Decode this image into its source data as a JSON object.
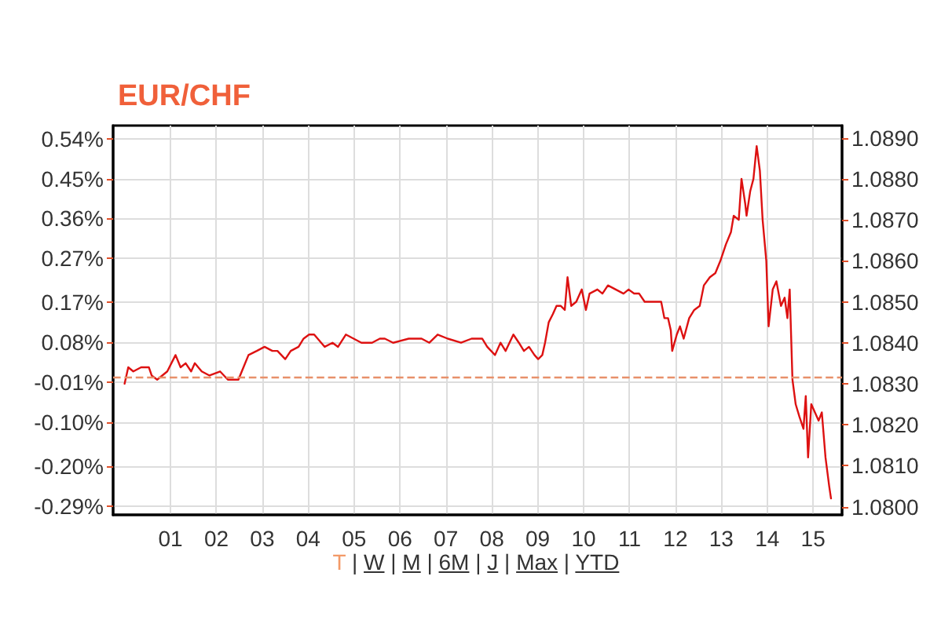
{
  "chart_data": {
    "type": "line",
    "title": "EUR/CHF",
    "x": [
      0,
      0.08,
      0.19,
      0.36,
      0.53,
      0.59,
      0.71,
      0.93,
      1.11,
      1.22,
      1.33,
      1.45,
      1.53,
      1.68,
      1.85,
      2.08,
      2.25,
      2.36,
      2.48,
      2.59,
      2.7,
      2.88,
      3.05,
      3.22,
      3.33,
      3.5,
      3.62,
      3.79,
      3.9,
      4.02,
      4.13,
      4.36,
      4.53,
      4.65,
      4.82,
      4.99,
      5.16,
      5.39,
      5.56,
      5.67,
      5.85,
      6.19,
      6.47,
      6.64,
      6.82,
      7.04,
      7.33,
      7.56,
      7.79,
      7.9,
      8.07,
      8.19,
      8.3,
      8.47,
      8.59,
      8.7,
      8.81,
      8.93,
      9.01,
      9.1,
      9.16,
      9.24,
      9.33,
      9.41,
      9.5,
      9.59,
      9.65,
      9.73,
      9.84,
      9.96,
      10.05,
      10.13,
      10.3,
      10.41,
      10.53,
      10.7,
      10.87,
      10.98,
      11.1,
      11.21,
      11.33,
      11.5,
      11.61,
      11.69,
      11.76,
      11.84,
      11.9,
      11.93,
      12.03,
      12.1,
      12.18,
      12.3,
      12.41,
      12.53,
      12.62,
      12.75,
      12.87,
      12.98,
      13.1,
      13.21,
      13.27,
      13.38,
      13.44,
      13.52,
      13.55,
      13.63,
      13.7,
      13.77,
      13.84,
      13.9,
      13.98,
      14.03,
      14.12,
      14.2,
      14.3,
      14.38,
      14.44,
      14.49,
      14.55,
      14.62,
      14.7,
      14.79,
      14.84,
      14.89,
      14.96,
      15.04,
      15.12,
      15.19,
      15.27,
      15.35,
      15.39
    ],
    "series": [
      {
        "color": "#dd1111",
        "axis": "y2",
        "values": [
          1.083,
          1.0834,
          1.0833,
          1.0834,
          1.0834,
          1.0832,
          1.0831,
          1.0833,
          1.0837,
          1.0834,
          1.0835,
          1.0833,
          1.0835,
          1.0833,
          1.0832,
          1.0833,
          1.0831,
          1.0831,
          1.0831,
          1.0834,
          1.0837,
          1.0838,
          1.0839,
          1.0838,
          1.0838,
          1.0836,
          1.0838,
          1.0839,
          1.0841,
          1.0842,
          1.0842,
          1.0839,
          1.084,
          1.0839,
          1.0842,
          1.0841,
          1.084,
          1.084,
          1.0841,
          1.0841,
          1.084,
          1.0841,
          1.0841,
          1.084,
          1.0842,
          1.0841,
          1.084,
          1.0841,
          1.0841,
          1.0839,
          1.0837,
          1.084,
          1.0838,
          1.0842,
          1.084,
          1.0838,
          1.0839,
          1.0837,
          1.0836,
          1.0837,
          1.084,
          1.0845,
          1.0847,
          1.0849,
          1.0849,
          1.0848,
          1.0856,
          1.0849,
          1.085,
          1.0853,
          1.0848,
          1.0852,
          1.0853,
          1.0852,
          1.0854,
          1.0853,
          1.0852,
          1.0853,
          1.0852,
          1.0852,
          1.085,
          1.085,
          1.085,
          1.085,
          1.0846,
          1.0846,
          1.0843,
          1.0838,
          1.0842,
          1.0844,
          1.0841,
          1.0846,
          1.0848,
          1.0849,
          1.0854,
          1.0856,
          1.0857,
          1.086,
          1.0864,
          1.0867,
          1.0871,
          1.087,
          1.088,
          1.0874,
          1.0871,
          1.0877,
          1.088,
          1.0888,
          1.0882,
          1.087,
          1.086,
          1.0844,
          1.0853,
          1.0855,
          1.0849,
          1.0851,
          1.0846,
          1.0853,
          1.0831,
          1.0825,
          1.0822,
          1.0819,
          1.0827,
          1.0812,
          1.0825,
          1.0823,
          1.0821,
          1.0823,
          1.0812,
          1.0805,
          1.0802
        ]
      }
    ],
    "xlim": [
      -0.25,
      15.63
    ],
    "xticks": [
      {
        "value": 1,
        "label": "01"
      },
      {
        "value": 2,
        "label": "02"
      },
      {
        "value": 3,
        "label": "03"
      },
      {
        "value": 4,
        "label": "04"
      },
      {
        "value": 5,
        "label": "05"
      },
      {
        "value": 6,
        "label": "06"
      },
      {
        "value": 7,
        "label": "07"
      },
      {
        "value": 8,
        "label": "08"
      },
      {
        "value": 9,
        "label": "09"
      },
      10,
      11,
      12,
      13,
      14,
      15
    ],
    "ylim": [
      -0.31,
      0.57
    ],
    "yticks": [
      {
        "value": -0.29,
        "label": "-0.29%"
      },
      {
        "value": -0.2,
        "label": "-0.20%"
      },
      {
        "value": -0.1,
        "label": "-0.10%"
      },
      {
        "value": -0.01,
        "label": "-0.01%"
      },
      {
        "value": 0.08,
        "label": "0.08%"
      },
      {
        "value": 0.17,
        "label": "0.17%"
      },
      {
        "value": 0.27,
        "label": "0.27%"
      },
      {
        "value": 0.36,
        "label": "0.36%"
      },
      {
        "value": 0.45,
        "label": "0.45%"
      },
      {
        "value": 0.54,
        "label": "0.54%"
      }
    ],
    "y2lim": [
      1.0798,
      1.0893
    ],
    "y2ticks": [
      {
        "value": 1.08,
        "label": "1.0800"
      },
      {
        "value": 1.081,
        "label": "1.0810"
      },
      {
        "value": 1.082,
        "label": "1.0820"
      },
      {
        "value": 1.083,
        "label": "1.0830"
      },
      {
        "value": 1.084,
        "label": "1.0840"
      },
      {
        "value": 1.085,
        "label": "1.0850"
      },
      {
        "value": 1.086,
        "label": "1.0860"
      },
      {
        "value": 1.087,
        "label": "1.0870"
      },
      {
        "value": 1.088,
        "label": "1.0880"
      },
      {
        "value": 1.089,
        "label": "1.0890"
      }
    ],
    "ref_lines": [
      {
        "axis": "y",
        "value": 0,
        "color": "#e8906a",
        "line_style": "dashed"
      }
    ],
    "grid": true,
    "marker": "none",
    "annotations": [
      "T | W | M | 6M | J | Max | YTD"
    ]
  }
}
